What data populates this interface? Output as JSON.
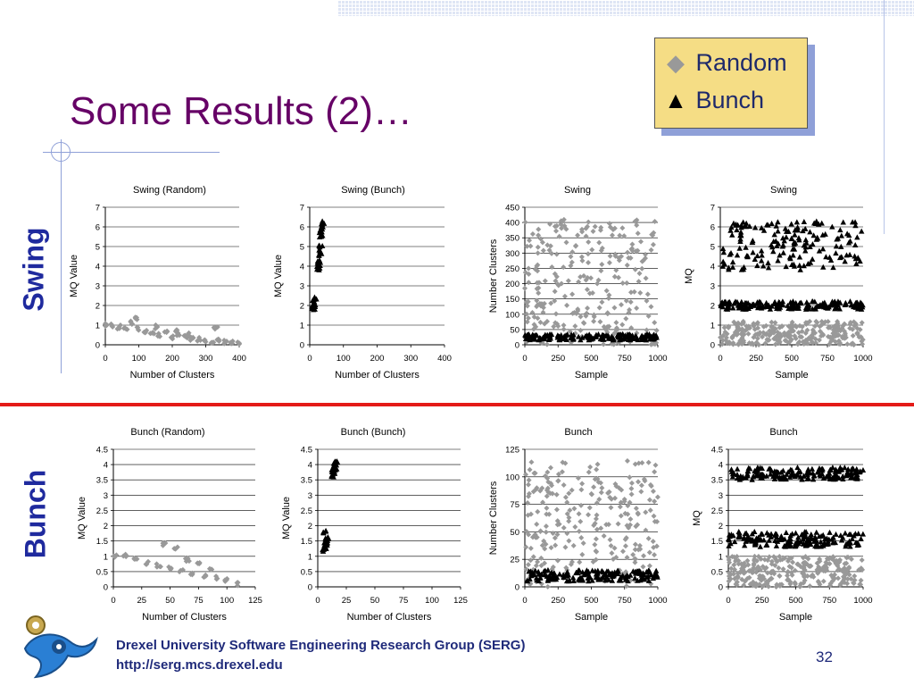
{
  "slide": {
    "title": "Some Results (2)…",
    "legend": {
      "random_label": "Random",
      "bunch_label": "Bunch"
    },
    "row_labels": {
      "swing": "Swing",
      "bunch": "Bunch"
    },
    "footer": {
      "line1": "Drexel University Software Engineering Research Group (SERG)",
      "line2": "http://serg.mcs.drexel.edu",
      "page": "32"
    },
    "colors": {
      "title": "#660066",
      "side_label": "#1f2a9e",
      "divider": "#e41b17",
      "legend_bg": "#f5dd85",
      "random_series": "#999999",
      "bunch_series": "#000000"
    }
  },
  "chart_data": [
    {
      "type": "scatter",
      "title": "Swing (Random)",
      "xlabel": "Number of Clusters",
      "ylabel": "MQ Value",
      "xlim": [
        0,
        400
      ],
      "ylim": [
        0,
        7
      ],
      "xticks": [
        0,
        100,
        200,
        300,
        400
      ],
      "yticks": [
        0,
        1,
        2,
        3,
        4,
        5,
        6,
        7
      ],
      "series": [
        {
          "marker": "diamond",
          "color": "#999999",
          "values": [
            [
              5,
              1.0
            ],
            [
              20,
              1.0
            ],
            [
              40,
              0.9
            ],
            [
              60,
              0.85
            ],
            [
              80,
              1.1
            ],
            [
              100,
              0.8
            ],
            [
              120,
              0.7
            ],
            [
              140,
              0.6
            ],
            [
              160,
              0.5
            ],
            [
              180,
              0.6
            ],
            [
              200,
              0.4
            ],
            [
              220,
              0.5
            ],
            [
              240,
              0.4
            ],
            [
              260,
              0.3
            ],
            [
              280,
              0.3
            ],
            [
              300,
              0.25
            ],
            [
              320,
              0.2
            ],
            [
              340,
              0.2
            ],
            [
              360,
              0.15
            ],
            [
              380,
              0.1
            ],
            [
              400,
              0.05
            ],
            [
              90,
              1.3
            ],
            [
              150,
              0.9
            ],
            [
              210,
              0.7
            ],
            [
              250,
              0.5
            ],
            [
              330,
              0.9
            ]
          ]
        }
      ]
    },
    {
      "type": "scatter",
      "title": "Swing (Bunch)",
      "xlabel": "Number of Clusters",
      "ylabel": "MQ Value",
      "xlim": [
        0,
        400
      ],
      "ylim": [
        0,
        7
      ],
      "xticks": [
        0,
        100,
        200,
        300,
        400
      ],
      "yticks": [
        0,
        1,
        2,
        3,
        4,
        5,
        6,
        7
      ],
      "series": [
        {
          "marker": "triangle",
          "color": "#000000",
          "values": [
            [
              10,
              1.8
            ],
            [
              12,
              2.0
            ],
            [
              14,
              2.2
            ],
            [
              15,
              2.4
            ],
            [
              11,
              1.9
            ],
            [
              25,
              3.8
            ],
            [
              28,
              4.2
            ],
            [
              30,
              4.6
            ],
            [
              32,
              5.0
            ],
            [
              34,
              5.5
            ],
            [
              36,
              5.9
            ],
            [
              38,
              6.2
            ],
            [
              27,
              4.0
            ],
            [
              31,
              4.8
            ],
            [
              35,
              5.7
            ]
          ]
        }
      ]
    },
    {
      "type": "scatter",
      "title": "Swing",
      "xlabel": "Sample",
      "ylabel": "Number Clusters",
      "xlim": [
        0,
        1000
      ],
      "ylim": [
        0,
        450
      ],
      "xticks": [
        0,
        250,
        500,
        750,
        1000
      ],
      "yticks": [
        0,
        50,
        100,
        150,
        200,
        250,
        300,
        350,
        400,
        450
      ],
      "series": [
        {
          "name": "Random",
          "marker": "diamond",
          "color": "#999999",
          "range": [
            0,
            410
          ]
        },
        {
          "name": "Bunch",
          "marker": "triangle",
          "color": "#000000",
          "range": [
            15,
            35
          ]
        }
      ]
    },
    {
      "type": "scatter",
      "title": "Swing",
      "xlabel": "Sample",
      "ylabel": "MQ",
      "xlim": [
        0,
        1000
      ],
      "ylim": [
        0,
        7
      ],
      "xticks": [
        0,
        250,
        500,
        750,
        1000
      ],
      "yticks": [
        0,
        1,
        2,
        3,
        4,
        5,
        6,
        7
      ],
      "series": [
        {
          "name": "Random",
          "marker": "diamond",
          "color": "#999999",
          "range": [
            0,
            1.2
          ]
        },
        {
          "name": "Bunch",
          "marker": "triangle",
          "color": "#000000",
          "range": [
            1.8,
            2.2
          ]
        },
        {
          "name": "Bunch",
          "marker": "triangle",
          "color": "#000000",
          "range": [
            3.8,
            6.3
          ]
        }
      ]
    },
    {
      "type": "scatter",
      "title": "Bunch (Random)",
      "xlabel": "Number of Clusters",
      "ylabel": "MQ Value",
      "xlim": [
        0,
        125
      ],
      "ylim": [
        0,
        4.5
      ],
      "xticks": [
        0,
        25,
        50,
        75,
        100,
        125
      ],
      "yticks": [
        0,
        0.5,
        1,
        1.5,
        2,
        2.5,
        3,
        3.5,
        4,
        4.5
      ],
      "series": [
        {
          "marker": "diamond",
          "color": "#999999",
          "values": [
            [
              2,
              1.0
            ],
            [
              10,
              1.0
            ],
            [
              20,
              0.9
            ],
            [
              30,
              0.8
            ],
            [
              40,
              0.7
            ],
            [
              50,
              0.6
            ],
            [
              60,
              0.5
            ],
            [
              70,
              0.4
            ],
            [
              80,
              0.35
            ],
            [
              90,
              0.3
            ],
            [
              100,
              0.2
            ],
            [
              110,
              0.1
            ],
            [
              45,
              1.4
            ],
            [
              55,
              1.3
            ],
            [
              65,
              0.9
            ],
            [
              75,
              0.8
            ],
            [
              85,
              0.6
            ]
          ]
        }
      ]
    },
    {
      "type": "scatter",
      "title": "Bunch (Bunch)",
      "xlabel": "Number of Clusters",
      "ylabel": "MQ Value",
      "xlim": [
        0,
        125
      ],
      "ylim": [
        0,
        4.5
      ],
      "xticks": [
        0,
        25,
        50,
        75,
        100,
        125
      ],
      "yticks": [
        0,
        0.5,
        1,
        1.5,
        2,
        2.5,
        3,
        3.5,
        4,
        4.5
      ],
      "series": [
        {
          "marker": "triangle",
          "color": "#000000",
          "values": [
            [
              6,
              1.2
            ],
            [
              7,
              1.4
            ],
            [
              8,
              1.6
            ],
            [
              6,
              1.8
            ],
            [
              7,
              1.3
            ],
            [
              8,
              1.5
            ],
            [
              13,
              3.6
            ],
            [
              14,
              3.8
            ],
            [
              15,
              4.0
            ],
            [
              16,
              4.1
            ],
            [
              14,
              3.7
            ],
            [
              15,
              3.9
            ]
          ]
        }
      ]
    },
    {
      "type": "scatter",
      "title": "Bunch",
      "xlabel": "Sample",
      "ylabel": "Number Clusters",
      "xlim": [
        0,
        1000
      ],
      "ylim": [
        0,
        125
      ],
      "xticks": [
        0,
        250,
        500,
        750,
        1000
      ],
      "yticks": [
        0,
        25,
        50,
        75,
        100,
        125
      ],
      "series": [
        {
          "name": "Random",
          "marker": "diamond",
          "color": "#999999",
          "range": [
            0,
            115
          ]
        },
        {
          "name": "Bunch",
          "marker": "triangle",
          "color": "#000000",
          "range": [
            5,
            15
          ]
        }
      ]
    },
    {
      "type": "scatter",
      "title": "Bunch",
      "xlabel": "Sample",
      "ylabel": "MQ",
      "xlim": [
        0,
        1000
      ],
      "ylim": [
        0,
        4.5
      ],
      "xticks": [
        0,
        250,
        500,
        750,
        1000
      ],
      "yticks": [
        0,
        0.5,
        1,
        1.5,
        2,
        2.5,
        3,
        3.5,
        4,
        4.5
      ],
      "series": [
        {
          "name": "Random",
          "marker": "diamond",
          "color": "#999999",
          "range": [
            0,
            1.0
          ]
        },
        {
          "name": "Bunch",
          "marker": "triangle",
          "color": "#000000",
          "range": [
            1.3,
            1.8
          ]
        },
        {
          "name": "Bunch",
          "marker": "triangle",
          "color": "#000000",
          "range": [
            3.5,
            3.9
          ]
        }
      ]
    }
  ]
}
